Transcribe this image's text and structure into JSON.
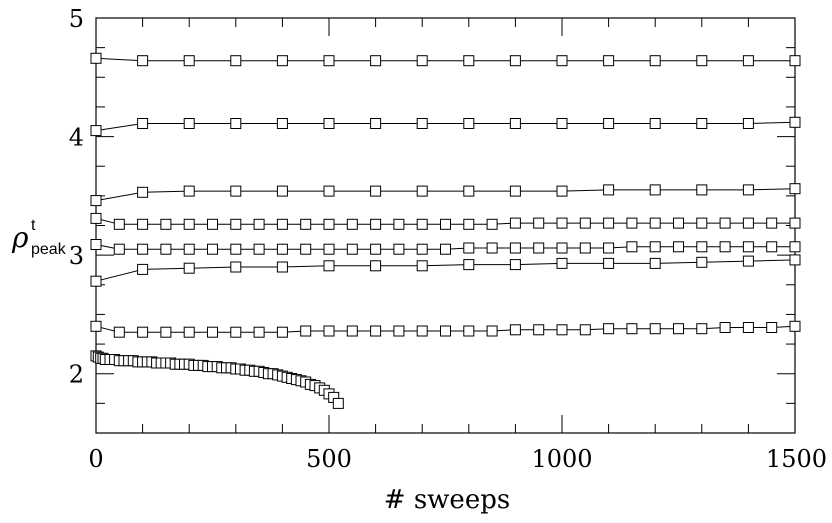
{
  "chart_data": {
    "type": "line",
    "title": "",
    "xlabel": "# sweeps",
    "ylabel": {
      "main": "ρ",
      "superscript": "t",
      "subscript": "peak"
    },
    "xlim": [
      0,
      1500
    ],
    "ylim": [
      1.5,
      5
    ],
    "xticks": [
      "0",
      "500",
      "1000",
      "1500"
    ],
    "yticks": [
      "2",
      "3",
      "4",
      "5"
    ],
    "x_minor_step": 100,
    "y_minor_step": 0.25,
    "grid": false,
    "legend": "none",
    "marker": "open-square",
    "line_color": "#000000",
    "series": [
      {
        "x": [
          0,
          100,
          200,
          300,
          400,
          500,
          600,
          700,
          800,
          900,
          1000,
          1100,
          1200,
          1300,
          1400,
          1500
        ],
        "y": [
          4.66,
          4.64,
          4.64,
          4.64,
          4.64,
          4.64,
          4.64,
          4.64,
          4.64,
          4.64,
          4.64,
          4.64,
          4.64,
          4.64,
          4.64,
          4.64
        ]
      },
      {
        "x": [
          0,
          100,
          200,
          300,
          400,
          500,
          600,
          700,
          800,
          900,
          1000,
          1100,
          1200,
          1300,
          1400,
          1500
        ],
        "y": [
          4.05,
          4.11,
          4.11,
          4.11,
          4.11,
          4.11,
          4.11,
          4.11,
          4.11,
          4.11,
          4.11,
          4.11,
          4.11,
          4.11,
          4.11,
          4.12
        ]
      },
      {
        "x": [
          0,
          100,
          200,
          300,
          400,
          500,
          600,
          700,
          800,
          900,
          1000,
          1100,
          1200,
          1300,
          1400,
          1500
        ],
        "y": [
          3.46,
          3.53,
          3.54,
          3.54,
          3.54,
          3.54,
          3.54,
          3.54,
          3.54,
          3.54,
          3.54,
          3.55,
          3.55,
          3.55,
          3.55,
          3.56
        ]
      },
      {
        "x": [
          0,
          50,
          100,
          150,
          200,
          250,
          300,
          350,
          400,
          450,
          500,
          550,
          600,
          650,
          700,
          750,
          800,
          850,
          900,
          950,
          1000,
          1050,
          1100,
          1150,
          1200,
          1250,
          1300,
          1350,
          1400,
          1450,
          1500
        ],
        "y": [
          3.31,
          3.26,
          3.26,
          3.26,
          3.26,
          3.26,
          3.26,
          3.26,
          3.26,
          3.26,
          3.26,
          3.26,
          3.26,
          3.26,
          3.26,
          3.26,
          3.26,
          3.26,
          3.27,
          3.27,
          3.27,
          3.27,
          3.27,
          3.27,
          3.27,
          3.27,
          3.27,
          3.27,
          3.27,
          3.27,
          3.27
        ]
      },
      {
        "x": [
          0,
          50,
          100,
          150,
          200,
          250,
          300,
          350,
          400,
          450,
          500,
          550,
          600,
          650,
          700,
          750,
          800,
          850,
          900,
          950,
          1000,
          1050,
          1100,
          1150,
          1200,
          1250,
          1300,
          1350,
          1400,
          1450,
          1500
        ],
        "y": [
          3.09,
          3.05,
          3.05,
          3.05,
          3.05,
          3.05,
          3.05,
          3.05,
          3.05,
          3.05,
          3.05,
          3.05,
          3.05,
          3.05,
          3.05,
          3.05,
          3.06,
          3.06,
          3.06,
          3.06,
          3.06,
          3.06,
          3.06,
          3.07,
          3.07,
          3.07,
          3.07,
          3.07,
          3.07,
          3.07,
          3.07
        ]
      },
      {
        "x": [
          0,
          100,
          200,
          300,
          400,
          500,
          600,
          700,
          800,
          900,
          1000,
          1100,
          1200,
          1300,
          1400,
          1500
        ],
        "y": [
          2.78,
          2.88,
          2.89,
          2.9,
          2.9,
          2.91,
          2.91,
          2.91,
          2.92,
          2.92,
          2.93,
          2.93,
          2.93,
          2.94,
          2.95,
          2.96
        ]
      },
      {
        "x": [
          0,
          50,
          100,
          150,
          200,
          250,
          300,
          350,
          400,
          450,
          500,
          550,
          600,
          650,
          700,
          750,
          800,
          850,
          900,
          950,
          1000,
          1050,
          1100,
          1150,
          1200,
          1250,
          1300,
          1350,
          1400,
          1450,
          1500
        ],
        "y": [
          2.4,
          2.35,
          2.35,
          2.35,
          2.35,
          2.35,
          2.35,
          2.35,
          2.35,
          2.36,
          2.36,
          2.36,
          2.36,
          2.36,
          2.36,
          2.36,
          2.36,
          2.36,
          2.37,
          2.37,
          2.37,
          2.37,
          2.38,
          2.38,
          2.38,
          2.38,
          2.38,
          2.39,
          2.39,
          2.39,
          2.4
        ]
      },
      {
        "x": [
          0,
          5,
          10,
          15,
          20,
          30,
          40,
          50,
          60,
          70,
          80,
          90,
          100,
          110,
          120,
          130,
          140,
          150,
          160,
          170,
          180,
          190,
          200,
          210,
          220,
          230,
          240,
          250,
          260,
          270,
          280,
          290,
          300,
          310,
          320,
          330,
          340,
          350,
          360,
          370,
          380,
          390,
          400,
          410,
          420,
          430,
          440,
          450,
          460,
          470,
          480,
          490,
          500,
          510,
          520
        ],
        "y": [
          2.15,
          2.14,
          2.13,
          2.13,
          2.12,
          2.12,
          2.12,
          2.11,
          2.11,
          2.11,
          2.11,
          2.1,
          2.1,
          2.1,
          2.1,
          2.09,
          2.09,
          2.09,
          2.09,
          2.08,
          2.08,
          2.08,
          2.08,
          2.07,
          2.07,
          2.07,
          2.06,
          2.06,
          2.06,
          2.05,
          2.05,
          2.05,
          2.04,
          2.04,
          2.03,
          2.03,
          2.02,
          2.02,
          2.01,
          2.0,
          2.0,
          1.99,
          1.98,
          1.97,
          1.96,
          1.95,
          1.94,
          1.93,
          1.91,
          1.9,
          1.88,
          1.86,
          1.83,
          1.8,
          1.75
        ]
      }
    ]
  }
}
